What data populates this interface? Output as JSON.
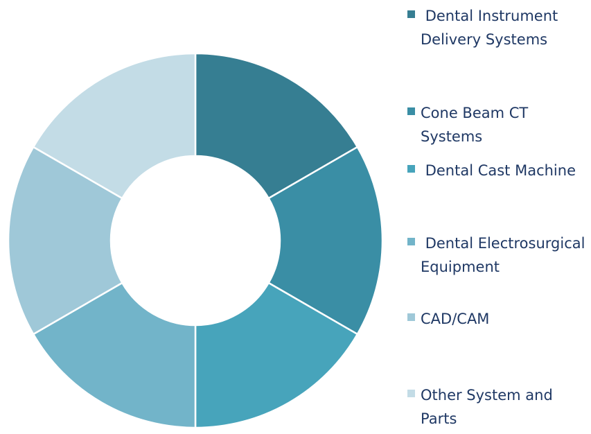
{
  "chart_data": {
    "type": "donut",
    "categories": [
      " Dental Instrument Delivery Systems",
      "Cone Beam CT Systems",
      " Dental Cast Machine",
      " Dental Electrosurgical Equipment",
      "CAD/CAM",
      "Other System and Parts"
    ],
    "values": [
      16.7,
      16.7,
      16.7,
      16.7,
      16.7,
      16.7
    ],
    "colors": [
      "#367e92",
      "#3a8ea5",
      "#47a4bb",
      "#72b4c9",
      "#9fc8d8",
      "#c3dce6"
    ],
    "legend": "right"
  }
}
